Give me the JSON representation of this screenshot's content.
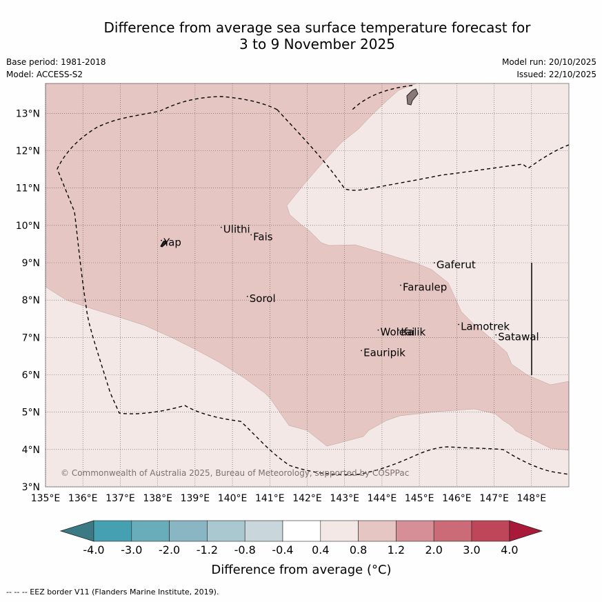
{
  "title": {
    "line1": "Difference from average sea surface temperature forecast for",
    "line2": "3 to 9 November 2025"
  },
  "meta": {
    "base_period": "Base period: 1981-2018",
    "model": "Model: ACCESS-S2",
    "model_run": "Model run: 20/10/2025",
    "issued": "Issued: 22/10/2025"
  },
  "map": {
    "extent": {
      "lon": [
        135,
        149
      ],
      "lat": [
        3,
        13.8
      ]
    },
    "lon_ticks": [
      "135°E",
      "136°E",
      "137°E",
      "138°E",
      "139°E",
      "140°E",
      "141°E",
      "142°E",
      "143°E",
      "144°E",
      "145°E",
      "146°E",
      "147°E",
      "148°E"
    ],
    "lat_ticks": [
      "3°N",
      "4°N",
      "5°N",
      "6°N",
      "7°N",
      "8°N",
      "9°N",
      "10°N",
      "11°N",
      "12°N",
      "13°N"
    ],
    "places": [
      {
        "name": "Yap",
        "lon": 138.1,
        "lat": 9.45
      },
      {
        "name": "Ulithi",
        "lon": 139.7,
        "lat": 9.8
      },
      {
        "name": "Fais",
        "lon": 140.5,
        "lat": 9.6
      },
      {
        "name": "Gaferut",
        "lon": 145.4,
        "lat": 8.85
      },
      {
        "name": "Faraulep",
        "lon": 144.5,
        "lat": 8.25
      },
      {
        "name": "Sorol",
        "lon": 140.4,
        "lat": 7.95
      },
      {
        "name": "Lamotrek",
        "lon": 146.05,
        "lat": 7.2
      },
      {
        "name": "Woleai",
        "lon": 143.9,
        "lat": 7.05
      },
      {
        "name": "Ifalik",
        "lon": 144.45,
        "lat": 7.05
      },
      {
        "name": "Satawal",
        "lon": 147.05,
        "lat": 6.92
      },
      {
        "name": "Eauripik",
        "lon": 143.45,
        "lat": 6.5
      }
    ],
    "copyright": "© Commonwealth of Australia 2025, Bureau of Meteorology, supported by COSPPac",
    "band_colors": {
      "light": "#f4e8e6",
      "medium": "#e6c6c2"
    }
  },
  "colorbar": {
    "labels": [
      "-4.0",
      "-3.0",
      "-2.0",
      "-1.2",
      "-0.8",
      "-0.4",
      "0.4",
      "0.8",
      "1.2",
      "2.0",
      "3.0",
      "4.0"
    ],
    "colors": [
      "#3b7a85",
      "#45a1b1",
      "#69adbb",
      "#8ab6c3",
      "#a9c8cf",
      "#c9d7dc",
      "#ffffff",
      "#f4e8e6",
      "#e6c6c2",
      "#d68f97",
      "#cb6b77",
      "#bf4658",
      "#a9193a"
    ],
    "label": "Difference from average (°C)"
  },
  "footer": "--  --  -- EEZ border V11 (Flanders Marine Institute, 2019)."
}
